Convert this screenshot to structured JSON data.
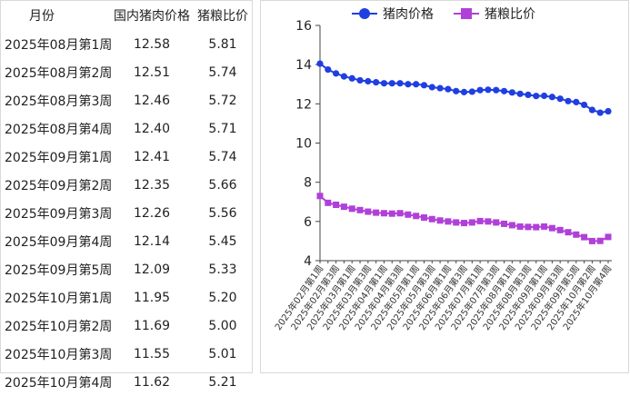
{
  "table": {
    "headers": [
      "月份",
      "国内猪肉价格",
      "猪粮比价"
    ],
    "rows": [
      [
        "2025年08月第1周",
        "12.58",
        "5.81"
      ],
      [
        "2025年08月第2周",
        "12.51",
        "5.74"
      ],
      [
        "2025年08月第3周",
        "12.46",
        "5.72"
      ],
      [
        "2025年08月第4周",
        "12.40",
        "5.71"
      ],
      [
        "2025年09月第1周",
        "12.41",
        "5.74"
      ],
      [
        "2025年09月第2周",
        "12.35",
        "5.66"
      ],
      [
        "2025年09月第3周",
        "12.26",
        "5.56"
      ],
      [
        "2025年09月第4周",
        "12.14",
        "5.45"
      ],
      [
        "2025年09月第5周",
        "12.09",
        "5.33"
      ],
      [
        "2025年10月第1周",
        "11.95",
        "5.20"
      ],
      [
        "2025年10月第2周",
        "11.69",
        "5.00"
      ],
      [
        "2025年10月第3周",
        "11.55",
        "5.01"
      ],
      [
        "2025年10月第4周",
        "11.62",
        "5.21"
      ]
    ]
  },
  "chart_data": {
    "type": "line",
    "title": "",
    "xlabel": "",
    "ylabel": "",
    "ylim": [
      4,
      16
    ],
    "yticks": [
      4,
      6,
      8,
      10,
      12,
      14,
      16
    ],
    "legend_position": "top",
    "categories": [
      "2025年02月第1周",
      "2025年02月第2周",
      "2025年02月第3周",
      "2025年02月第4周",
      "2025年03月第1周",
      "2025年03月第2周",
      "2025年03月第3周",
      "2025年03月第4周",
      "2025年04月第1周",
      "2025年04月第2周",
      "2025年04月第3周",
      "2025年04月第4周",
      "2025年05月第1周",
      "2025年05月第2周",
      "2025年05月第3周",
      "2025年05月第4周",
      "2025年06月第1周",
      "2025年06月第2周",
      "2025年06月第3周",
      "2025年06月第4周",
      "2025年07月第1周",
      "2025年07月第2周",
      "2025年07月第3周",
      "2025年07月第4周",
      "2025年08月第1周",
      "2025年08月第2周",
      "2025年08月第3周",
      "2025年08月第4周",
      "2025年09月第1周",
      "2025年09月第2周",
      "2025年09月第3周",
      "2025年09月第4周",
      "2025年09月第5周",
      "2025年10月第1周",
      "2025年10月第2周",
      "2025年10月第3周",
      "2025年10月第4周"
    ],
    "xtick_labels": [
      "2025年02月第1周",
      "2025年02月第3周",
      "2025年03月第1周",
      "2025年03月第3周",
      "2025年04月第1周",
      "2025年04月第3周",
      "2025年05月第1周",
      "2025年05月第3周",
      "2025年06月第1周",
      "2025年06月第3周",
      "2025年07月第1周",
      "2025年07月第3周",
      "2025年08月第1周",
      "2025年08月第3周",
      "2025年09月第1周",
      "2025年09月第3周",
      "2025年09月第5周",
      "2025年10月第2周",
      "2025年10月第4周"
    ],
    "series": [
      {
        "name": "猪肉价格",
        "color": "#1f3fe0",
        "marker": "circle",
        "values": [
          14.05,
          13.75,
          13.55,
          13.4,
          13.3,
          13.2,
          13.15,
          13.1,
          13.05,
          13.05,
          13.05,
          13.0,
          13.0,
          12.95,
          12.85,
          12.8,
          12.75,
          12.65,
          12.6,
          12.62,
          12.7,
          12.72,
          12.7,
          12.65,
          12.58,
          12.51,
          12.46,
          12.4,
          12.41,
          12.35,
          12.26,
          12.14,
          12.09,
          11.95,
          11.69,
          11.55,
          11.62
        ]
      },
      {
        "name": "猪粮比价",
        "color": "#b040d8",
        "marker": "square",
        "values": [
          7.3,
          6.95,
          6.85,
          6.75,
          6.65,
          6.58,
          6.5,
          6.45,
          6.42,
          6.4,
          6.42,
          6.35,
          6.28,
          6.2,
          6.12,
          6.05,
          6.0,
          5.95,
          5.92,
          5.95,
          6.02,
          6.0,
          5.95,
          5.88,
          5.81,
          5.74,
          5.72,
          5.71,
          5.74,
          5.66,
          5.56,
          5.45,
          5.33,
          5.2,
          5.0,
          5.01,
          5.21
        ]
      }
    ]
  }
}
